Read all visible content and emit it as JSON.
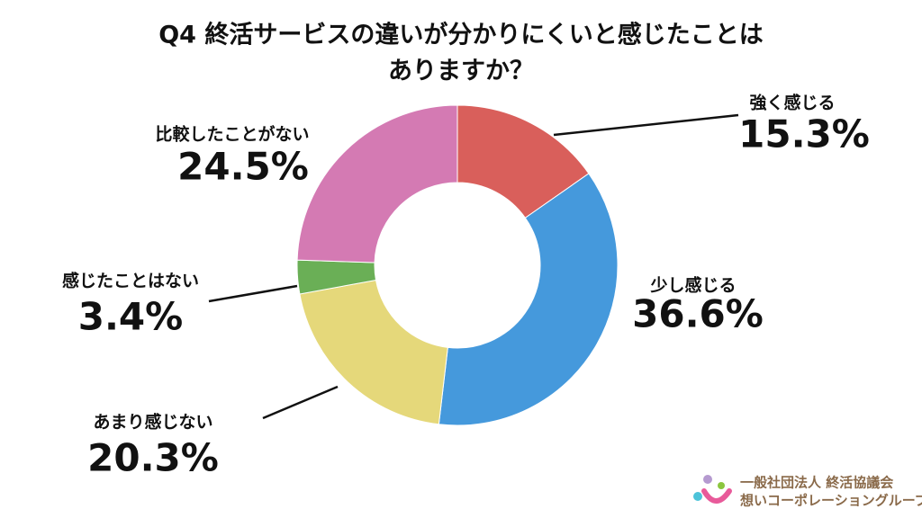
{
  "chart_data": {
    "type": "donut",
    "title": [
      "Q4 終活サービスの違いが分かりにくいと感じたことは",
      "ありますか？"
    ],
    "categories": [
      "強く感じる",
      "少し感じる",
      "あまり感じない",
      "感じたことはない",
      "比較したことがない"
    ],
    "values": [
      15.3,
      36.6,
      20.3,
      3.4,
      24.5
    ],
    "value_labels": [
      "15.3%",
      "36.6%",
      "20.3%",
      "3.4%",
      "24.5%"
    ],
    "colors": [
      "#d95f5b",
      "#4599dc",
      "#e5d87a",
      "#6aaf56",
      "#d47ab3"
    ]
  },
  "footer": {
    "organization": "一般社団法人 終活協議会",
    "group": "想いコーポレーショングループ"
  }
}
